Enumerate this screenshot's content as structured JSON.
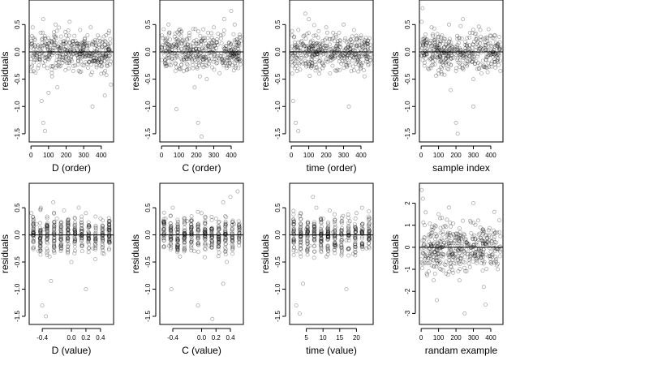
{
  "chart_data": [
    {
      "type": "scatter",
      "xlabel": "D (order)",
      "ylabel": "residuals",
      "xlim": [
        -10,
        470
      ],
      "ylim": [
        -1.65,
        0.95
      ],
      "xticks": [
        0,
        100,
        200,
        300,
        400
      ],
      "xticklabels": [
        "0",
        "100",
        "200",
        "300",
        "400"
      ],
      "yticks": [
        -1.5,
        -1.0,
        -0.5,
        0.0,
        0.5
      ],
      "yticklabels": [
        "-1.5",
        "-1.0",
        "-0.5",
        "0.0",
        "0.5"
      ],
      "hline": 0,
      "points": {
        "x": [
          3,
          10,
          25,
          40,
          55,
          70,
          85,
          100,
          120,
          140,
          160,
          180,
          200,
          220,
          240,
          260,
          280,
          300,
          320,
          340,
          360,
          380,
          400,
          420,
          440,
          455,
          60,
          70,
          80,
          100,
          150,
          350,
          420
        ],
        "y": [
          0.2,
          0.45,
          0.1,
          -0.3,
          0.35,
          0.6,
          -0.1,
          0.25,
          -0.45,
          0.5,
          0.05,
          -0.2,
          0.3,
          0.55,
          -0.35,
          0.15,
          0.4,
          -0.25,
          0.1,
          0.45,
          -0.15,
          0.3,
          -0.4,
          0.2,
          0.05,
          -0.6,
          -0.9,
          -1.3,
          -1.45,
          -0.75,
          -0.65,
          -1.0,
          -0.8
        ]
      }
    },
    {
      "type": "scatter",
      "xlabel": "C (order)",
      "ylabel": "residuals",
      "xlim": [
        -10,
        470
      ],
      "ylim": [
        -1.65,
        0.95
      ],
      "xticks": [
        0,
        100,
        200,
        300,
        400
      ],
      "xticklabels": [
        "0",
        "100",
        "200",
        "300",
        "400"
      ],
      "yticks": [
        -1.5,
        -1.0,
        -0.5,
        0.0,
        0.5
      ],
      "yticklabels": [
        "-1.5",
        "-1.0",
        "-0.5",
        "0.0",
        "0.5"
      ],
      "hline": 0,
      "points": {
        "x": [
          3,
          20,
          40,
          60,
          80,
          100,
          120,
          140,
          160,
          180,
          200,
          220,
          240,
          260,
          280,
          300,
          320,
          340,
          360,
          380,
          400,
          420,
          440,
          455,
          85,
          190,
          210,
          230
        ],
        "y": [
          0.3,
          -0.2,
          0.5,
          0.1,
          -0.35,
          0.4,
          0.2,
          -0.1,
          0.35,
          -0.3,
          0.15,
          -0.45,
          0.25,
          -0.5,
          0.1,
          0.45,
          -0.2,
          0.3,
          0.6,
          -0.15,
          0.75,
          0.5,
          -0.3,
          0.2,
          -1.05,
          -0.65,
          -1.3,
          -1.55
        ]
      }
    },
    {
      "type": "scatter",
      "xlabel": "time (order)",
      "ylabel": "residuals",
      "xlim": [
        -10,
        470
      ],
      "ylim": [
        -1.65,
        0.95
      ],
      "xticks": [
        0,
        100,
        200,
        300,
        400
      ],
      "xticklabels": [
        "0",
        "100",
        "200",
        "300",
        "400"
      ],
      "yticks": [
        -1.5,
        -1.0,
        -0.5,
        0.0,
        0.5
      ],
      "yticklabels": [
        "-1.5",
        "-1.0",
        "-0.5",
        "0.0",
        "0.5"
      ],
      "hline": 0,
      "points": {
        "x": [
          5,
          20,
          40,
          60,
          80,
          100,
          120,
          140,
          160,
          180,
          200,
          220,
          240,
          260,
          280,
          300,
          320,
          340,
          360,
          380,
          400,
          420,
          440,
          455,
          10,
          25,
          40,
          330
        ],
        "y": [
          0.1,
          -0.3,
          0.4,
          0.2,
          0.7,
          0.6,
          -0.2,
          0.3,
          -0.4,
          0.2,
          0.45,
          -0.1,
          0.35,
          -0.35,
          0.15,
          0.5,
          -0.25,
          0.1,
          0.4,
          -0.15,
          0.3,
          -0.45,
          0.2,
          -0.05,
          -0.9,
          -1.3,
          -1.45,
          -1.0
        ]
      }
    },
    {
      "type": "scatter",
      "xlabel": "sample index",
      "ylabel": "residuals",
      "xlim": [
        -10,
        470
      ],
      "ylim": [
        -1.65,
        0.95
      ],
      "xticks": [
        0,
        100,
        200,
        300,
        400
      ],
      "xticklabels": [
        "0",
        "100",
        "200",
        "300",
        "400"
      ],
      "yticks": [
        -1.5,
        -1.0,
        -0.5,
        0.0,
        0.5
      ],
      "yticklabels": [
        "-1.5",
        "-1.0",
        "-0.5",
        "0.0",
        "0.5"
      ],
      "hline": 0,
      "points": {
        "x": [
          3,
          8,
          20,
          40,
          60,
          80,
          100,
          120,
          140,
          160,
          180,
          200,
          220,
          240,
          260,
          280,
          300,
          320,
          340,
          360,
          380,
          400,
          420,
          440,
          455,
          170,
          200,
          210,
          300
        ],
        "y": [
          0.55,
          0.8,
          0.2,
          -0.3,
          0.45,
          0.1,
          -0.4,
          0.3,
          -0.2,
          0.5,
          0.05,
          -0.35,
          0.25,
          0.6,
          -0.1,
          0.35,
          -0.5,
          0.15,
          0.4,
          -0.25,
          0.2,
          -0.05,
          0.3,
          0.1,
          -0.35,
          -0.7,
          -1.3,
          -1.5,
          -1.0
        ]
      }
    },
    {
      "type": "scatter",
      "xlabel": "D (value)",
      "ylabel": "residuals",
      "xlim": [
        -0.58,
        0.58
      ],
      "ylim": [
        -1.65,
        0.95
      ],
      "xticks": [
        -0.4,
        0.0,
        0.2,
        0.4
      ],
      "xticklabels": [
        "-0.4",
        "0.0",
        "0.2",
        "0.4"
      ],
      "yticks": [
        -1.5,
        -1.0,
        -0.5,
        0.0,
        0.5
      ],
      "yticklabels": [
        "-1.5",
        "-1.0",
        "-0.5",
        "0.0",
        "0.5"
      ],
      "hline": 0,
      "points": {
        "x": [
          -0.55,
          -0.48,
          -0.45,
          -0.42,
          -0.38,
          -0.3,
          -0.25,
          -0.2,
          -0.15,
          -0.1,
          -0.05,
          0.0,
          0.05,
          0.1,
          0.12,
          0.15,
          0.2,
          0.25,
          0.3,
          0.4,
          0.45,
          0.5,
          -0.4,
          -0.35,
          -0.28,
          0.2
        ],
        "y": [
          0.4,
          0.2,
          -0.3,
          0.5,
          0.1,
          -0.4,
          0.6,
          0.3,
          -0.2,
          0.45,
          0.1,
          -0.5,
          0.3,
          0.5,
          0.0,
          -0.3,
          0.4,
          0.15,
          -0.25,
          0.3,
          -0.35,
          0.1,
          -1.3,
          -1.5,
          -0.85,
          -1.0
        ]
      }
    },
    {
      "type": "scatter",
      "xlabel": "C (value)",
      "ylabel": "residuals",
      "xlim": [
        -0.58,
        0.58
      ],
      "ylim": [
        -1.65,
        0.95
      ],
      "xticks": [
        -0.4,
        0.0,
        0.2,
        0.4
      ],
      "xticklabels": [
        "-0.4",
        "0.0",
        "0.2",
        "0.4"
      ],
      "yticks": [
        -1.5,
        -1.0,
        -0.5,
        0.0,
        0.5
      ],
      "yticklabels": [
        "-1.5",
        "-1.0",
        "-0.5",
        "0.0",
        "0.5"
      ],
      "hline": 0,
      "points": {
        "x": [
          -0.5,
          -0.45,
          -0.4,
          -0.35,
          -0.3,
          -0.2,
          -0.1,
          0.0,
          0.1,
          0.2,
          0.3,
          0.35,
          0.4,
          0.45,
          0.5,
          -0.42,
          -0.05,
          0.15,
          0.3
        ],
        "y": [
          0.3,
          -0.2,
          0.5,
          0.1,
          -0.4,
          0.25,
          -0.3,
          0.4,
          -0.2,
          0.3,
          0.6,
          -0.5,
          0.7,
          0.2,
          0.8,
          -1.0,
          -1.3,
          -1.55,
          -0.9
        ]
      }
    },
    {
      "type": "scatter",
      "xlabel": "time (value)",
      "ylabel": "residuals",
      "xlim": [
        0,
        25
      ],
      "ylim": [
        -1.65,
        0.95
      ],
      "xticks": [
        5,
        10,
        15,
        20
      ],
      "xticklabels": [
        "5",
        "10",
        "15",
        "20"
      ],
      "yticks": [
        -1.5,
        -1.0,
        -0.5,
        0.0,
        0.5
      ],
      "yticklabels": [
        "-1.5",
        "-1.0",
        "-0.5",
        "0.0",
        "0.5"
      ],
      "hline": 0,
      "points": {
        "x": [
          1,
          2,
          3,
          5,
          6,
          7,
          8,
          10,
          11,
          12,
          13,
          14,
          16,
          17,
          18,
          19,
          20,
          22,
          23,
          24,
          2,
          3,
          4,
          17
        ],
        "y": [
          0.2,
          -0.3,
          0.35,
          0.1,
          -0.2,
          0.7,
          0.5,
          0.3,
          -0.4,
          0.45,
          0.05,
          -0.2,
          0.35,
          -0.1,
          0.25,
          -0.35,
          0.4,
          0.1,
          -0.25,
          0.3,
          -1.3,
          -1.45,
          -0.9,
          -1.0
        ]
      }
    },
    {
      "type": "scatter",
      "xlabel": "randam example",
      "ylabel": "residuals",
      "xlim": [
        -10,
        470
      ],
      "ylim": [
        -3.5,
        2.9
      ],
      "xticks": [
        0,
        100,
        200,
        300,
        400
      ],
      "xticklabels": [
        "0",
        "100",
        "200",
        "300",
        "400"
      ],
      "yticks": [
        -3,
        -2,
        -1,
        0,
        1,
        2
      ],
      "yticklabels": [
        "-3",
        "-2",
        "-1",
        "0",
        "1",
        "2"
      ],
      "hline": 0,
      "points": {
        "x": [
          3,
          10,
          20,
          40,
          60,
          80,
          100,
          120,
          140,
          160,
          180,
          200,
          220,
          240,
          260,
          280,
          300,
          320,
          340,
          360,
          380,
          400,
          420,
          440,
          455,
          90,
          250,
          370
        ],
        "y": [
          2.6,
          2.2,
          1.0,
          -0.5,
          0.8,
          -1.2,
          1.5,
          0.3,
          -0.8,
          1.8,
          -0.3,
          0.6,
          -1.5,
          1.2,
          0.2,
          -0.9,
          2.0,
          -0.6,
          0.9,
          -1.8,
          0.4,
          -0.2,
          1.6,
          -1.0,
          0.5,
          -2.4,
          -3.0,
          -2.6
        ]
      }
    }
  ]
}
